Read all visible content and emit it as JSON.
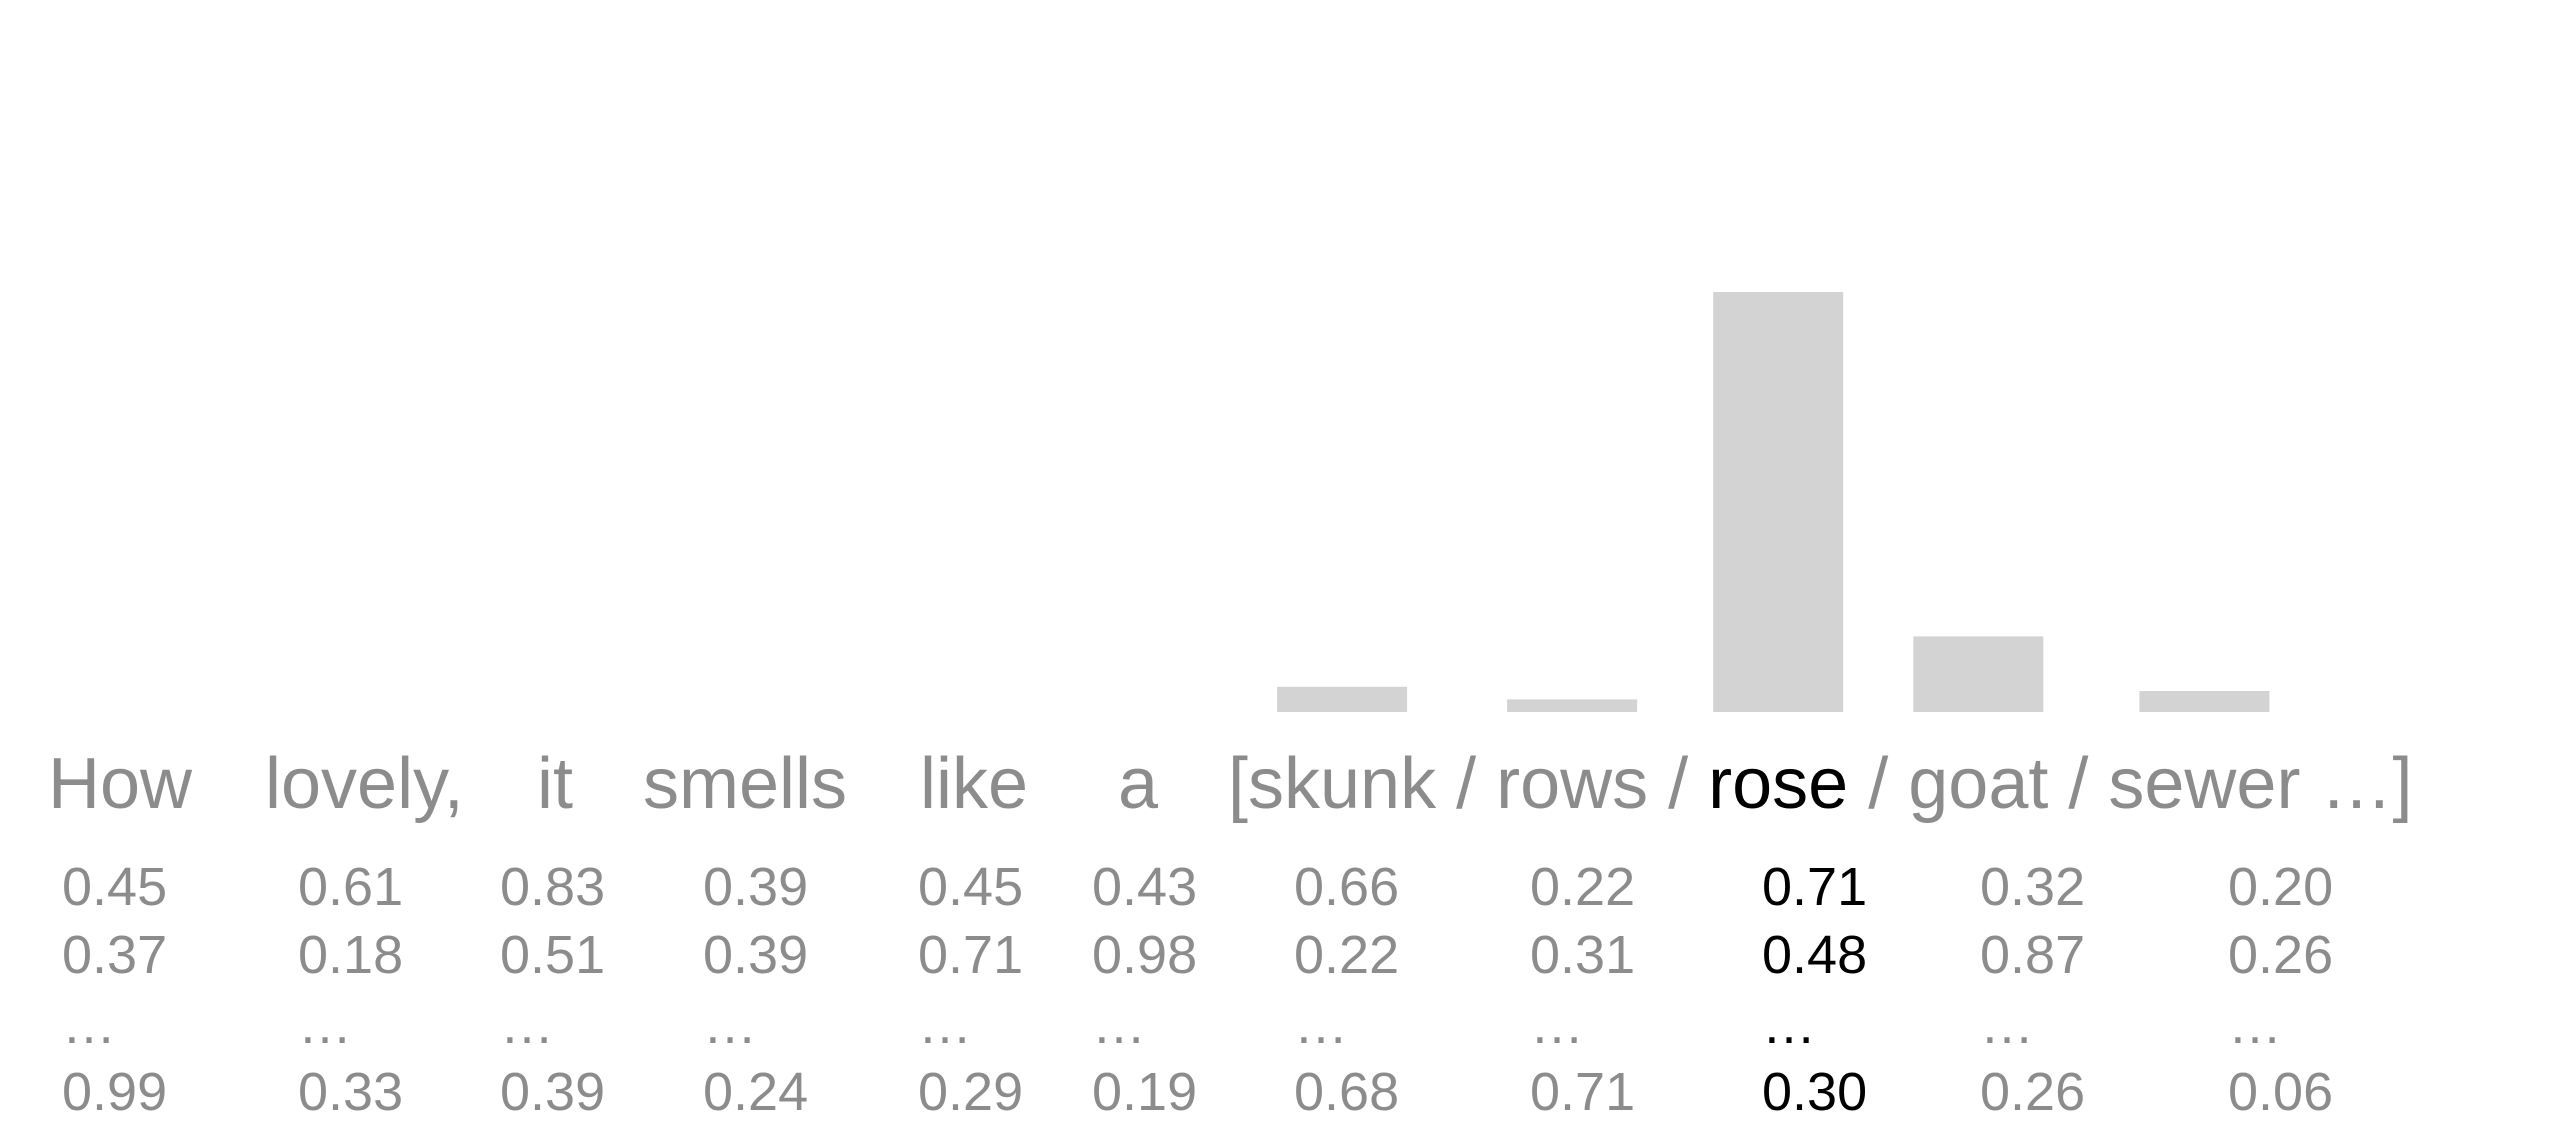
{
  "chart_data": {
    "type": "bar",
    "title": "",
    "xlabel": "",
    "ylabel": "",
    "grid": false,
    "highlight_color": "#000000",
    "text_color": "#8c8c8c",
    "bar_color": "#d3d3d3",
    "categories": [
      "skunk",
      "rows",
      "rose",
      "goat",
      "sewer"
    ],
    "values": [
      0.06,
      0.03,
      1.0,
      0.18,
      0.05
    ],
    "ylim": [
      0,
      1
    ],
    "sentence": {
      "tokens": [
        {
          "text": "How"
        },
        {
          "text": "lovely,"
        },
        {
          "text": "it"
        },
        {
          "text": "smells"
        },
        {
          "text": "like"
        },
        {
          "text": "a"
        }
      ],
      "candidates_open": "[",
      "separator": "/",
      "candidates_close": "…]",
      "candidates": [
        {
          "text": "skunk",
          "highlight": false
        },
        {
          "text": "rows",
          "highlight": false
        },
        {
          "text": "rose",
          "highlight": true
        },
        {
          "text": "goat",
          "highlight": false
        },
        {
          "text": "sewer",
          "highlight": false
        }
      ]
    },
    "ellipsis": "…",
    "vectors": [
      {
        "values": [
          "0.45",
          "0.37",
          "0.99"
        ],
        "highlight": false
      },
      {
        "values": [
          "0.61",
          "0.18",
          "0.33"
        ],
        "highlight": false
      },
      {
        "values": [
          "0.83",
          "0.51",
          "0.39"
        ],
        "highlight": false
      },
      {
        "values": [
          "0.39",
          "0.39",
          "0.24"
        ],
        "highlight": false
      },
      {
        "values": [
          "0.45",
          "0.71",
          "0.29"
        ],
        "highlight": false
      },
      {
        "values": [
          "0.43",
          "0.98",
          "0.19"
        ],
        "highlight": false
      },
      {
        "values": [
          "0.66",
          "0.22",
          "0.68"
        ],
        "highlight": false
      },
      {
        "values": [
          "0.22",
          "0.31",
          "0.71"
        ],
        "highlight": false
      },
      {
        "values": [
          "0.71",
          "0.48",
          "0.30"
        ],
        "highlight": true
      },
      {
        "values": [
          "0.32",
          "0.87",
          "0.26"
        ],
        "highlight": false
      },
      {
        "values": [
          "0.20",
          "0.26",
          "0.06"
        ],
        "highlight": false
      }
    ]
  }
}
